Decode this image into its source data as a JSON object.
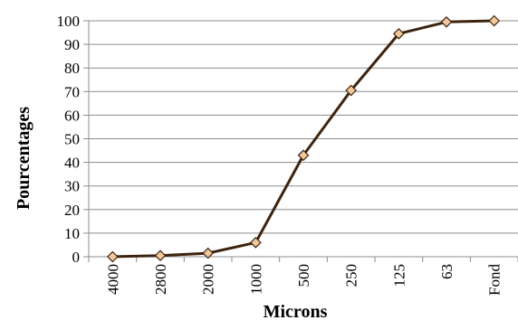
{
  "chart_data": {
    "type": "line",
    "categories": [
      "4000",
      "2800",
      "2000",
      "1000",
      "500",
      "250",
      "125",
      "63",
      "Fond"
    ],
    "series": [
      {
        "values": [
          0,
          0.5,
          1.5,
          6,
          43,
          70.5,
          94.5,
          99.5,
          100
        ]
      }
    ],
    "xlabel": "Microns",
    "ylabel": "Pourcentages",
    "ylim": [
      0,
      100
    ],
    "yticks": [
      0,
      10,
      20,
      30,
      40,
      50,
      60,
      70,
      80,
      90,
      100
    ],
    "grid": true,
    "line_color": "#3d2410",
    "marker_color": "#f2c79b",
    "marker": "diamond"
  }
}
